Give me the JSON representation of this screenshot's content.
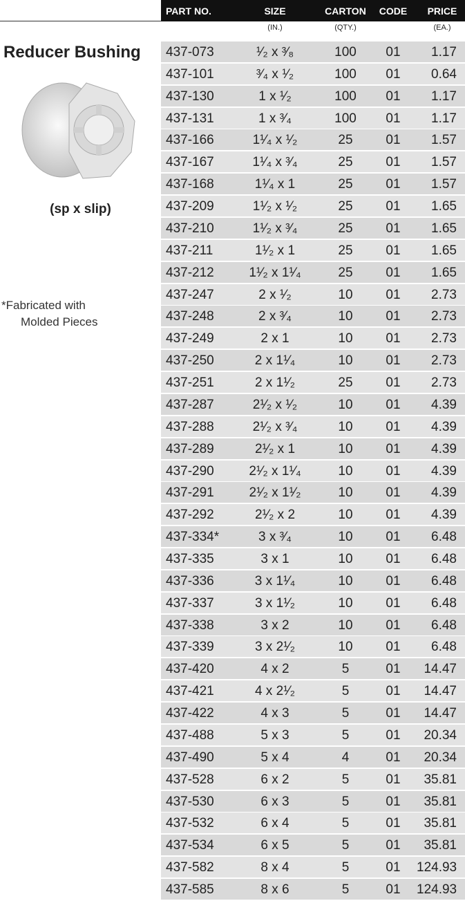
{
  "product": {
    "title": "Reducer Bushing",
    "connection": "(sp x slip)",
    "footnote": [
      "*Fabricated with",
      "Molded Pieces"
    ]
  },
  "table": {
    "columns": [
      "PART NO.",
      "SIZE",
      "CARTON",
      "CODE",
      "PRICE"
    ],
    "units": [
      "(IN.)",
      "(QTY.)",
      "(EA.)"
    ],
    "rows": [
      [
        "437-073",
        "¹⁄₂ x ³⁄₈",
        "100",
        "01",
        "1.17"
      ],
      [
        "437-101",
        "³⁄₄ x ¹⁄₂",
        "100",
        "01",
        "0.64"
      ],
      [
        "437-130",
        "1 x ¹⁄₂",
        "100",
        "01",
        "1.17"
      ],
      [
        "437-131",
        "1 x ³⁄₄",
        "100",
        "01",
        "1.17"
      ],
      [
        "437-166",
        "1¹⁄₄ x ¹⁄₂",
        "25",
        "01",
        "1.57"
      ],
      [
        "437-167",
        "1¹⁄₄ x ³⁄₄",
        "25",
        "01",
        "1.57"
      ],
      [
        "437-168",
        "1¹⁄₄ x 1",
        "25",
        "01",
        "1.57"
      ],
      [
        "437-209",
        "1¹⁄₂ x ¹⁄₂",
        "25",
        "01",
        "1.65"
      ],
      [
        "437-210",
        "1¹⁄₂ x ³⁄₄",
        "25",
        "01",
        "1.65"
      ],
      [
        "437-211",
        "1¹⁄₂ x 1",
        "25",
        "01",
        "1.65"
      ],
      [
        "437-212",
        "1¹⁄₂ x 1¹⁄₄",
        "25",
        "01",
        "1.65"
      ],
      [
        "437-247",
        "2 x ¹⁄₂",
        "10",
        "01",
        "2.73"
      ],
      [
        "437-248",
        "2 x ³⁄₄",
        "10",
        "01",
        "2.73"
      ],
      [
        "437-249",
        "2 x 1",
        "10",
        "01",
        "2.73"
      ],
      [
        "437-250",
        "2 x 1¹⁄₄",
        "10",
        "01",
        "2.73"
      ],
      [
        "437-251",
        "2 x 1¹⁄₂",
        "25",
        "01",
        "2.73"
      ],
      [
        "437-287",
        "2¹⁄₂ x ¹⁄₂",
        "10",
        "01",
        "4.39"
      ],
      [
        "437-288",
        "2¹⁄₂ x ³⁄₄",
        "10",
        "01",
        "4.39"
      ],
      [
        "437-289",
        "2¹⁄₂ x 1",
        "10",
        "01",
        "4.39"
      ],
      [
        "437-290",
        "2¹⁄₂ x 1¹⁄₄",
        "10",
        "01",
        "4.39"
      ],
      [
        "437-291",
        "2¹⁄₂ x 1¹⁄₂",
        "10",
        "01",
        "4.39"
      ],
      [
        "437-292",
        "2¹⁄₂ x 2",
        "10",
        "01",
        "4.39"
      ],
      [
        "437-334*",
        "3 x ³⁄₄",
        "10",
        "01",
        "6.48"
      ],
      [
        "437-335",
        "3 x 1",
        "10",
        "01",
        "6.48"
      ],
      [
        "437-336",
        "3 x 1¹⁄₄",
        "10",
        "01",
        "6.48"
      ],
      [
        "437-337",
        "3 x 1¹⁄₂",
        "10",
        "01",
        "6.48"
      ],
      [
        "437-338",
        "3 x 2",
        "10",
        "01",
        "6.48"
      ],
      [
        "437-339",
        "3 x 2¹⁄₂",
        "10",
        "01",
        "6.48"
      ],
      [
        "437-420",
        "4 x 2",
        "5",
        "01",
        "14.47"
      ],
      [
        "437-421",
        "4 x 2¹⁄₂",
        "5",
        "01",
        "14.47"
      ],
      [
        "437-422",
        "4 x 3",
        "5",
        "01",
        "14.47"
      ],
      [
        "437-488",
        "5 x 3",
        "5",
        "01",
        "20.34"
      ],
      [
        "437-490",
        "5 x 4",
        "4",
        "01",
        "20.34"
      ],
      [
        "437-528",
        "6 x 2",
        "5",
        "01",
        "35.81"
      ],
      [
        "437-530",
        "6 x 3",
        "5",
        "01",
        "35.81"
      ],
      [
        "437-532",
        "6 x 4",
        "5",
        "01",
        "35.81"
      ],
      [
        "437-534",
        "6 x 5",
        "5",
        "01",
        "35.81"
      ],
      [
        "437-582",
        "8 x 4",
        "5",
        "01",
        "124.93"
      ],
      [
        "437-585",
        "8 x 6",
        "5",
        "01",
        "124.93"
      ]
    ]
  }
}
